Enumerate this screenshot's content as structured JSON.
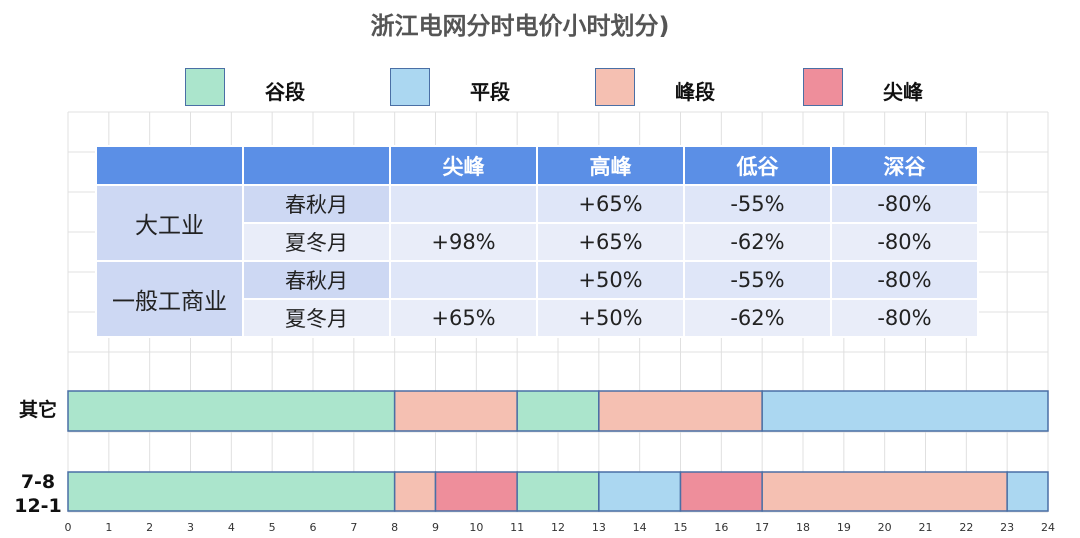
{
  "title": "浙江电网分时电价小时划分)",
  "colors": {
    "valley": "#abe5cc",
    "flat": "#abd7f1",
    "peak": "#f5c0b2",
    "sharp": "#ee8e9b",
    "header": "#5b8fe6",
    "border": "#4a6fa5",
    "grid": "#e0e0e0"
  },
  "legend": [
    {
      "label": "谷段",
      "type": "valley"
    },
    {
      "label": "平段",
      "type": "flat"
    },
    {
      "label": "峰段",
      "type": "peak"
    },
    {
      "label": "尖峰",
      "type": "sharp"
    }
  ],
  "table": {
    "headers": [
      "",
      "",
      "尖峰",
      "高峰",
      "低谷",
      "深谷"
    ],
    "groups": [
      {
        "category": "大工业",
        "rows": [
          {
            "season": "春秋月",
            "values": [
              "",
              "+65%",
              "-55%",
              "-80%"
            ]
          },
          {
            "season": "夏冬月",
            "values": [
              "+98%",
              "+65%",
              "-62%",
              "-80%"
            ]
          }
        ]
      },
      {
        "category": "一般工商业",
        "rows": [
          {
            "season": "春秋月",
            "values": [
              "",
              "+50%",
              "-55%",
              "-80%"
            ]
          },
          {
            "season": "夏冬月",
            "values": [
              "+65%",
              "+50%",
              "-62%",
              "-80%"
            ]
          }
        ]
      }
    ]
  },
  "chart_data": {
    "type": "bar",
    "x_ticks": [
      "0",
      "1",
      "2",
      "3",
      "4",
      "5",
      "6",
      "7",
      "8",
      "9",
      "10",
      "11",
      "12",
      "13",
      "14",
      "15",
      "16",
      "17",
      "18",
      "19",
      "20",
      "21",
      "22",
      "23",
      "24"
    ],
    "xlim": [
      0,
      24
    ],
    "grid": true,
    "rows": [
      {
        "label": "其它",
        "segments": [
          {
            "start": 0,
            "end": 8,
            "type": "valley"
          },
          {
            "start": 8,
            "end": 11,
            "type": "peak"
          },
          {
            "start": 11,
            "end": 13,
            "type": "valley"
          },
          {
            "start": 13,
            "end": 17,
            "type": "peak"
          },
          {
            "start": 17,
            "end": 24,
            "type": "flat"
          }
        ]
      },
      {
        "label": "7-8\n12-1",
        "segments": [
          {
            "start": 0,
            "end": 8,
            "type": "valley"
          },
          {
            "start": 8,
            "end": 9,
            "type": "peak"
          },
          {
            "start": 9,
            "end": 11,
            "type": "sharp"
          },
          {
            "start": 11,
            "end": 13,
            "type": "valley"
          },
          {
            "start": 13,
            "end": 15,
            "type": "flat"
          },
          {
            "start": 15,
            "end": 17,
            "type": "sharp"
          },
          {
            "start": 17,
            "end": 23,
            "type": "peak"
          },
          {
            "start": 23,
            "end": 24,
            "type": "flat"
          }
        ]
      }
    ]
  }
}
